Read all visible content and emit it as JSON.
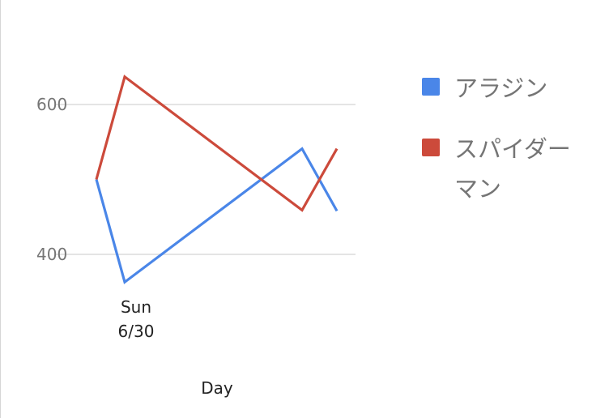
{
  "chart_data": {
    "type": "line",
    "x": [
      "",
      "Sun 6/30",
      "",
      ""
    ],
    "xlabel": "Day",
    "ylabel": "",
    "ylim": [
      300,
      700
    ],
    "yticks": [
      400,
      600
    ],
    "category_label_lines": [
      "Sun",
      "6/30"
    ],
    "grid": true,
    "legend_position": "right",
    "series": [
      {
        "name": "アラジン",
        "color": "#4a86e8",
        "values": [
          500,
          363,
          541,
          458
        ]
      },
      {
        "name": "スパイダーマン",
        "color": "#cc4a3b",
        "values": [
          500,
          637,
          459,
          541
        ]
      }
    ],
    "legend_lines": [
      [
        "アラジン"
      ],
      [
        "スパイダー",
        "マン"
      ]
    ]
  }
}
